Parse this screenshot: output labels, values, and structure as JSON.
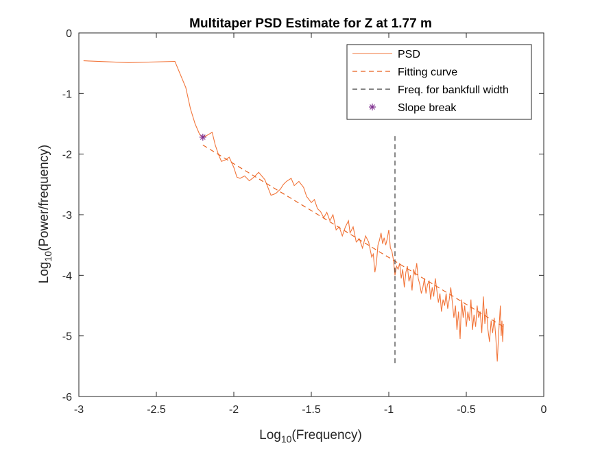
{
  "chart_data": {
    "type": "line",
    "title": "Multitaper PSD Estimate for Z at 1.77 m",
    "xlabel_prefix": "Log",
    "xlabel_sub": "10",
    "xlabel_suffix": "(Frequency)",
    "ylabel_prefix": "Log",
    "ylabel_sub": "10",
    "ylabel_suffix": "(Power/frequency)",
    "xlim": [
      -3,
      0
    ],
    "ylim": [
      -6,
      0
    ],
    "xticks": [
      -3,
      -2.5,
      -2,
      -1.5,
      -1,
      -0.5,
      0
    ],
    "xtick_labels": [
      "-3",
      "-2.5",
      "-2",
      "-1.5",
      "-1",
      "-0.5",
      "0"
    ],
    "yticks": [
      -6,
      -5,
      -4,
      -3,
      -2,
      -1,
      0
    ],
    "ytick_labels": [
      "-6",
      "-5",
      "-4",
      "-3",
      "-2",
      "-1",
      "0"
    ],
    "grid": false,
    "legend_position": "top-right",
    "series": [
      {
        "name": "PSD",
        "style": "solid",
        "color": "#F2753A",
        "points": [
          [
            -2.97,
            -0.46
          ],
          [
            -2.68,
            -0.49
          ],
          [
            -2.38,
            -0.47
          ],
          [
            -2.31,
            -0.9
          ],
          [
            -2.28,
            -1.25
          ],
          [
            -2.25,
            -1.5
          ],
          [
            -2.22,
            -1.68
          ],
          [
            -2.2,
            -1.72
          ],
          [
            -2.18,
            -1.7
          ],
          [
            -2.14,
            -1.64
          ],
          [
            -2.12,
            -1.85
          ],
          [
            -2.1,
            -2.0
          ],
          [
            -2.08,
            -2.12
          ],
          [
            -2.05,
            -2.09
          ],
          [
            -2.03,
            -2.05
          ],
          [
            -2.0,
            -2.22
          ],
          [
            -1.98,
            -2.38
          ],
          [
            -1.96,
            -2.4
          ],
          [
            -1.93,
            -2.36
          ],
          [
            -1.9,
            -2.44
          ],
          [
            -1.87,
            -2.38
          ],
          [
            -1.84,
            -2.3
          ],
          [
            -1.82,
            -2.36
          ],
          [
            -1.8,
            -2.42
          ],
          [
            -1.78,
            -2.55
          ],
          [
            -1.76,
            -2.68
          ],
          [
            -1.73,
            -2.65
          ],
          [
            -1.7,
            -2.58
          ],
          [
            -1.68,
            -2.5
          ],
          [
            -1.66,
            -2.45
          ],
          [
            -1.63,
            -2.4
          ],
          [
            -1.61,
            -2.52
          ],
          [
            -1.58,
            -2.45
          ],
          [
            -1.55,
            -2.55
          ],
          [
            -1.53,
            -2.7
          ],
          [
            -1.5,
            -2.8
          ],
          [
            -1.48,
            -2.75
          ],
          [
            -1.46,
            -2.9
          ],
          [
            -1.44,
            -2.95
          ],
          [
            -1.42,
            -3.05
          ],
          [
            -1.4,
            -2.96
          ],
          [
            -1.38,
            -3.1
          ],
          [
            -1.36,
            -3.0
          ],
          [
            -1.34,
            -3.25
          ],
          [
            -1.32,
            -3.2
          ],
          [
            -1.3,
            -3.35
          ],
          [
            -1.28,
            -3.2
          ],
          [
            -1.26,
            -3.1
          ],
          [
            -1.25,
            -3.3
          ],
          [
            -1.23,
            -3.2
          ],
          [
            -1.21,
            -3.45
          ],
          [
            -1.19,
            -3.4
          ],
          [
            -1.17,
            -3.55
          ],
          [
            -1.15,
            -3.35
          ],
          [
            -1.13,
            -3.45
          ],
          [
            -1.11,
            -3.7
          ],
          [
            -1.1,
            -3.65
          ],
          [
            -1.09,
            -3.95
          ],
          [
            -1.08,
            -3.8
          ],
          [
            -1.07,
            -3.5
          ],
          [
            -1.06,
            -3.42
          ],
          [
            -1.05,
            -3.3
          ],
          [
            -1.04,
            -3.48
          ],
          [
            -1.03,
            -3.38
          ],
          [
            -1.02,
            -3.5
          ],
          [
            -1.01,
            -3.4
          ],
          [
            -1.0,
            -3.25
          ],
          [
            -0.99,
            -3.55
          ],
          [
            -0.98,
            -3.6
          ],
          [
            -0.97,
            -3.75
          ],
          [
            -0.96,
            -4.0
          ],
          [
            -0.95,
            -3.85
          ],
          [
            -0.94,
            -3.9
          ],
          [
            -0.93,
            -3.8
          ],
          [
            -0.92,
            -4.05
          ],
          [
            -0.91,
            -3.9
          ],
          [
            -0.9,
            -4.2
          ],
          [
            -0.89,
            -3.95
          ],
          [
            -0.88,
            -3.85
          ],
          [
            -0.87,
            -4.1
          ],
          [
            -0.86,
            -4.0
          ],
          [
            -0.85,
            -4.25
          ],
          [
            -0.84,
            -3.9
          ],
          [
            -0.83,
            -4.0
          ],
          [
            -0.82,
            -3.8
          ],
          [
            -0.81,
            -4.05
          ],
          [
            -0.8,
            -4.15
          ],
          [
            -0.79,
            -4.3
          ],
          [
            -0.78,
            -4.2
          ],
          [
            -0.77,
            -4.05
          ],
          [
            -0.76,
            -4.3
          ],
          [
            -0.75,
            -4.15
          ],
          [
            -0.74,
            -4.1
          ],
          [
            -0.73,
            -4.4
          ],
          [
            -0.72,
            -4.2
          ],
          [
            -0.71,
            -4.35
          ],
          [
            -0.7,
            -4.05
          ],
          [
            -0.69,
            -4.25
          ],
          [
            -0.68,
            -4.45
          ],
          [
            -0.67,
            -4.3
          ],
          [
            -0.66,
            -4.6
          ],
          [
            -0.65,
            -4.4
          ],
          [
            -0.64,
            -4.5
          ],
          [
            -0.63,
            -4.3
          ],
          [
            -0.62,
            -4.55
          ],
          [
            -0.61,
            -4.4
          ],
          [
            -0.6,
            -4.2
          ],
          [
            -0.59,
            -4.45
          ],
          [
            -0.58,
            -4.7
          ],
          [
            -0.57,
            -4.5
          ],
          [
            -0.56,
            -4.9
          ],
          [
            -0.55,
            -4.6
          ],
          [
            -0.54,
            -5.05
          ],
          [
            -0.53,
            -4.4
          ],
          [
            -0.52,
            -4.7
          ],
          [
            -0.51,
            -4.5
          ],
          [
            -0.5,
            -4.85
          ],
          [
            -0.49,
            -4.6
          ],
          [
            -0.48,
            -4.75
          ],
          [
            -0.47,
            -4.4
          ],
          [
            -0.46,
            -4.9
          ],
          [
            -0.45,
            -4.65
          ],
          [
            -0.44,
            -4.85
          ],
          [
            -0.43,
            -4.5
          ],
          [
            -0.42,
            -4.7
          ],
          [
            -0.41,
            -4.6
          ],
          [
            -0.4,
            -4.95
          ],
          [
            -0.39,
            -4.35
          ],
          [
            -0.38,
            -4.8
          ],
          [
            -0.37,
            -4.55
          ],
          [
            -0.36,
            -4.9
          ],
          [
            -0.35,
            -5.1
          ],
          [
            -0.34,
            -4.75
          ],
          [
            -0.33,
            -4.95
          ],
          [
            -0.32,
            -4.7
          ],
          [
            -0.31,
            -5.0
          ],
          [
            -0.3,
            -5.42
          ],
          [
            -0.29,
            -4.9
          ],
          [
            -0.28,
            -4.5
          ],
          [
            -0.275,
            -5.0
          ],
          [
            -0.27,
            -4.75
          ],
          [
            -0.265,
            -5.1
          ],
          [
            -0.26,
            -4.8
          ]
        ]
      },
      {
        "name": "Fitting curve",
        "style": "dashed",
        "color": "#E8621F",
        "points": [
          [
            -2.2,
            -1.85
          ],
          [
            -0.26,
            -4.85
          ]
        ]
      },
      {
        "name": "Freq. for bankfull width",
        "style": "dashed",
        "color": "#3a3a3a",
        "points": [
          [
            -0.96,
            -1.7
          ],
          [
            -0.96,
            -5.45
          ]
        ]
      },
      {
        "name": "Slope break",
        "style": "marker",
        "color": "#7E2F8E",
        "points": [
          [
            -2.2,
            -1.72
          ]
        ]
      }
    ]
  }
}
